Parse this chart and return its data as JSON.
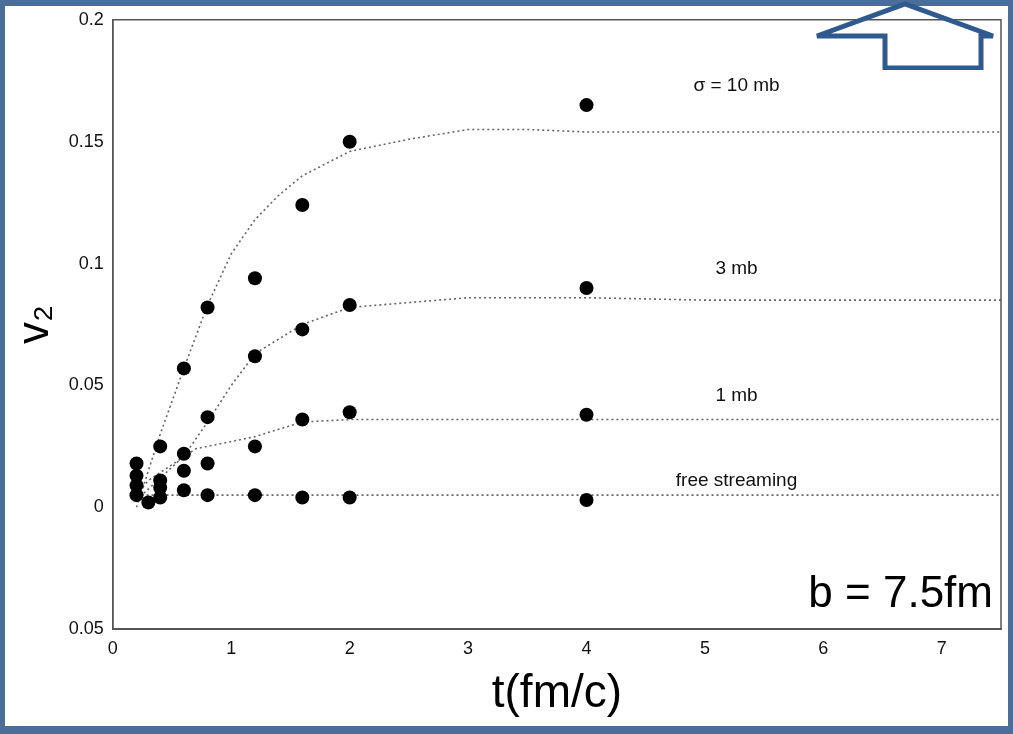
{
  "chart_data": {
    "type": "scatter",
    "xlabel": "t(fm/c)",
    "ylabel": "v₂",
    "xlim": [
      0,
      7.5
    ],
    "xticks": [
      0,
      1,
      2,
      3,
      4,
      5,
      6,
      7
    ],
    "ylim": [
      -0.05,
      0.2
    ],
    "yticks": [
      {
        "value": -0.05,
        "label": "0.05"
      },
      0,
      0.05,
      0.1,
      0.15,
      0.2
    ],
    "grid": false,
    "legend": false,
    "marker": "circle",
    "annotations": [
      "b = 7.5fm"
    ],
    "series": [
      {
        "name": "σ = 10 mb",
        "color": "#000000",
        "x": [
          0.2,
          0.4,
          0.6,
          0.8,
          1.2,
          1.6,
          2,
          4
        ],
        "values": [
          0.018,
          0.025,
          0.057,
          0.082,
          0.094,
          0.124,
          0.15,
          0.165
        ]
      },
      {
        "name": "3 mb",
        "color": "#000000",
        "x": [
          0.2,
          0.4,
          0.6,
          0.8,
          1.2,
          1.6,
          2,
          4
        ],
        "values": [
          0.013,
          0.011,
          0.022,
          0.037,
          0.062,
          0.073,
          0.083,
          0.09
        ]
      },
      {
        "name": "1 mb",
        "color": "#000000",
        "x": [
          0.2,
          0.4,
          0.6,
          0.8,
          1.2,
          1.6,
          2,
          4
        ],
        "values": [
          0.009,
          0.008,
          0.015,
          0.018,
          0.025,
          0.036,
          0.039,
          0.038
        ]
      },
      {
        "name": "free streaming",
        "color": "#000000",
        "x": [
          0.2,
          0.3,
          0.4,
          0.6,
          0.8,
          1.2,
          1.6,
          2,
          4
        ],
        "values": [
          0.005,
          0.002,
          0.004,
          0.007,
          0.005,
          0.005,
          0.004,
          0.004,
          0.003
        ]
      },
      {
        "type": "line",
        "color": "#666666",
        "marker": "none",
        "line_style": "dotted",
        "x": [
          0.2,
          0.4,
          0.6,
          0.8,
          1,
          1.2,
          1.4,
          1.6,
          2,
          2.5,
          3,
          3.5,
          4,
          5,
          6,
          7.5
        ],
        "values": [
          0,
          0.03,
          0.057,
          0.083,
          0.104,
          0.118,
          0.128,
          0.136,
          0.146,
          0.151,
          0.155,
          0.155,
          0.154,
          0.154,
          0.154,
          0.154
        ]
      },
      {
        "type": "line",
        "color": "#666666",
        "marker": "none",
        "line_style": "dotted",
        "x": [
          0.2,
          0.4,
          0.6,
          0.8,
          1,
          1.2,
          1.6,
          2,
          2.5,
          3,
          4,
          5,
          7.5
        ],
        "values": [
          0.003,
          0.012,
          0.021,
          0.035,
          0.05,
          0.063,
          0.075,
          0.082,
          0.084,
          0.086,
          0.086,
          0.085,
          0.085
        ]
      },
      {
        "type": "line",
        "color": "#666666",
        "marker": "none",
        "line_style": "dotted",
        "x": [
          0.2,
          0.3,
          0.7,
          1.2,
          1.6,
          2,
          2.6,
          4,
          7.5
        ],
        "values": [
          0.005,
          0.011,
          0.024,
          0.029,
          0.035,
          0.036,
          0.036,
          0.036,
          0.036
        ]
      },
      {
        "type": "line",
        "color": "#666666",
        "marker": "none",
        "line_style": "dotted",
        "x": [
          0.2,
          7.5
        ],
        "values": [
          0.005,
          0.005
        ]
      }
    ]
  }
}
